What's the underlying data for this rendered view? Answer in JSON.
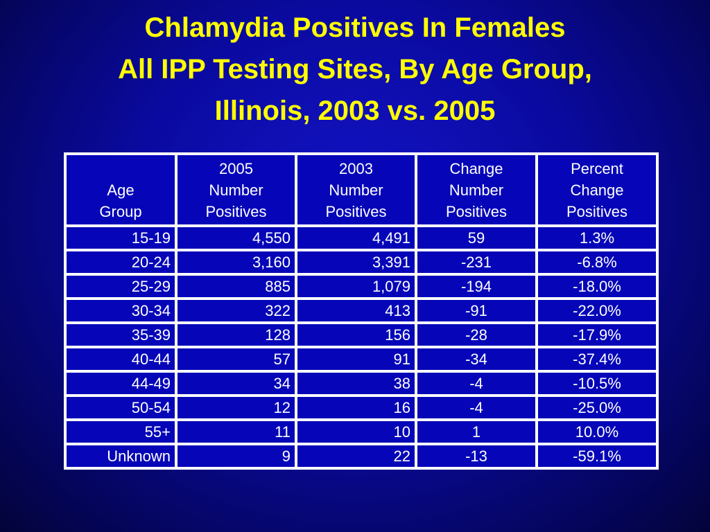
{
  "title": {
    "line1": "Chlamydia Positives In Females",
    "line2": "All IPP Testing Sites, By Age Group,",
    "line3": "Illinois, 2003 vs. 2005"
  },
  "table": {
    "headers": [
      [
        "",
        "Age",
        "Group"
      ],
      [
        "2005",
        "Number",
        "Positives"
      ],
      [
        "2003",
        "Number",
        "Positives"
      ],
      [
        "Change",
        "Number",
        "Positives"
      ],
      [
        "Percent",
        "Change",
        "Positives"
      ]
    ],
    "rows": [
      [
        "15-19",
        "4,550",
        "4,491",
        "59",
        "1.3%"
      ],
      [
        "20-24",
        "3,160",
        "3,391",
        "-231",
        "-6.8%"
      ],
      [
        "25-29",
        "885",
        "1,079",
        "-194",
        "-18.0%"
      ],
      [
        "30-34",
        "322",
        "413",
        "-91",
        "-22.0%"
      ],
      [
        "35-39",
        "128",
        "156",
        "-28",
        "-17.9%"
      ],
      [
        "40-44",
        "57",
        "91",
        "-34",
        "-37.4%"
      ],
      [
        "44-49",
        "34",
        "38",
        "-4",
        "-10.5%"
      ],
      [
        "50-54",
        "12",
        "16",
        "-4",
        "-25.0%"
      ],
      [
        "55+",
        "11",
        "10",
        "1",
        "10.0%"
      ],
      [
        "Unknown",
        "9",
        "22",
        "-13",
        "-59.1%"
      ]
    ]
  }
}
